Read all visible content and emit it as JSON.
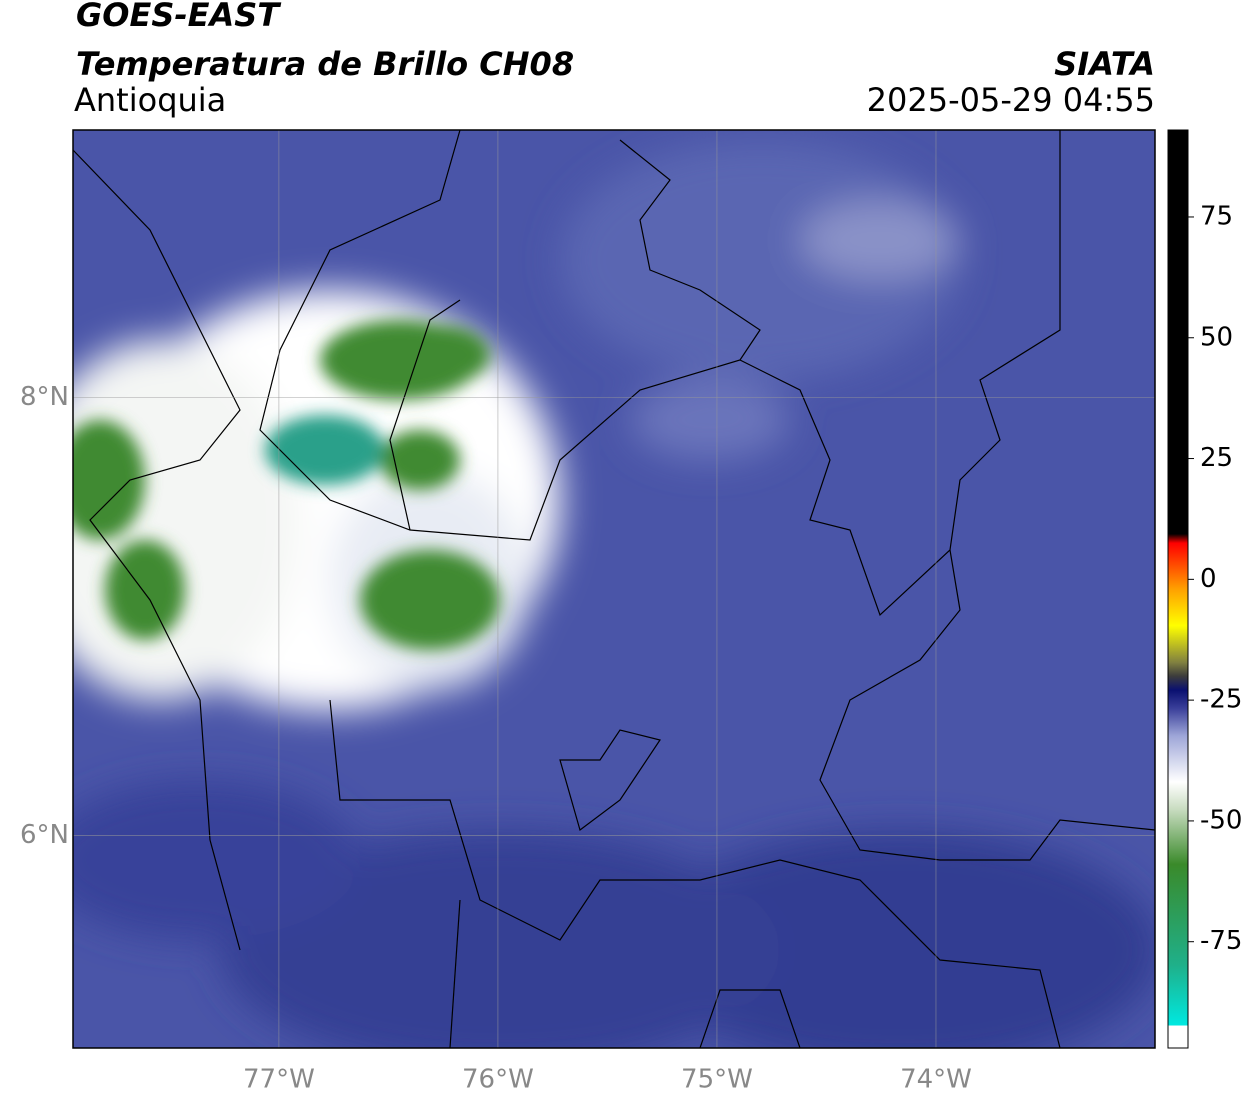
{
  "header": {
    "title": "GOES-EAST",
    "subtitle": "Temperatura de Brillo CH08",
    "region": "Antioquia",
    "source": "SIATA",
    "datetime": "2025-05-29 04:55"
  },
  "map": {
    "xlim": [
      -77.94,
      -73.0
    ],
    "ylim": [
      5.03,
      9.22
    ],
    "xticks": [
      {
        "value": -77,
        "label": "77°W"
      },
      {
        "value": -76,
        "label": "76°W"
      },
      {
        "value": -75,
        "label": "75°W"
      },
      {
        "value": -74,
        "label": "74°W"
      }
    ],
    "yticks": [
      {
        "value": 6,
        "label": "6°N"
      },
      {
        "value": 8,
        "label": "8°N"
      }
    ],
    "grid": true
  },
  "colorbar": {
    "lim": [
      -97,
      93
    ],
    "ticks": [
      -75,
      -50,
      -25,
      0,
      25,
      50,
      75
    ]
  }
}
